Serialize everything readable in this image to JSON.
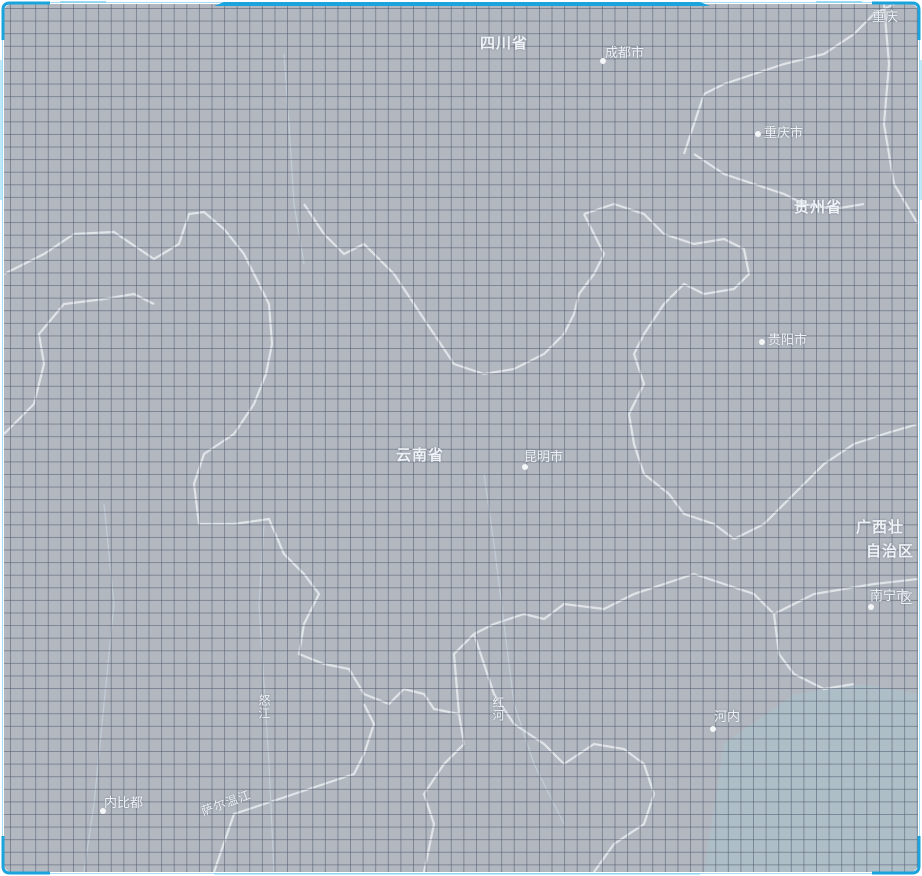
{
  "map": {
    "provinces": [
      {
        "id": "sichuan",
        "name": "四川省"
      },
      {
        "id": "yunnan",
        "name": "云南省"
      },
      {
        "id": "guizhou",
        "name": "贵州省"
      },
      {
        "id": "guangxi-1",
        "name": "广西壮"
      },
      {
        "id": "guangxi-2",
        "name": "自治区"
      }
    ],
    "cities": [
      {
        "id": "chengdu",
        "name": "成都市"
      },
      {
        "id": "chongqing",
        "name": "重庆市"
      },
      {
        "id": "guiyang",
        "name": "贵阳市"
      },
      {
        "id": "kunming",
        "name": "昆明市"
      },
      {
        "id": "nanning",
        "name": "南宁市"
      },
      {
        "id": "hanoi",
        "name": "河内"
      },
      {
        "id": "naypyidaw",
        "name": "内比都"
      }
    ],
    "edge_labels": [
      {
        "id": "top-right",
        "name": "重庆"
      },
      {
        "id": "right-edge",
        "name": "区"
      }
    ],
    "river_labels": [
      {
        "id": "river-1",
        "name": "怒江"
      },
      {
        "id": "river-2",
        "name": "红河"
      },
      {
        "id": "river-3",
        "name": "萨尔温江"
      }
    ]
  },
  "colors": {
    "land": "#b3b8c0",
    "grid": "#505a6e",
    "boundary": "#e8ecf0",
    "frame": "#1aa3dc",
    "sea": "#a9c2cc"
  }
}
